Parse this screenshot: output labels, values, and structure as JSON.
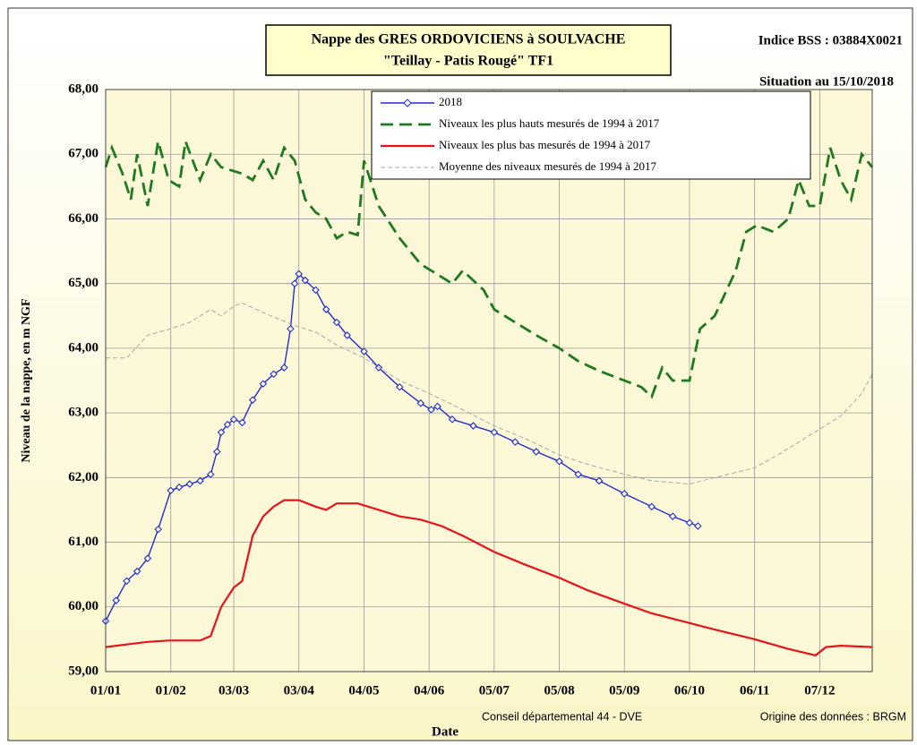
{
  "chart_data": {
    "type": "line",
    "title": "Nappe des GRES ORDOVICIENS à SOULVACHE",
    "subtitle": "\"Teillay - Patis Rougé\" TF1",
    "station": "Indice BSS : 03884X0021",
    "situation": "Situation au 15/10/2018",
    "y_label": "Niveau de la nappe, en m NGF",
    "x_label": "Date",
    "credit": "Conseil départemental 44 - DVE",
    "source": "Origine des données : BRGM",
    "xlim": [
      0,
      365
    ],
    "xticks": [
      {
        "value": 0,
        "label": "01/01"
      },
      {
        "value": 31,
        "label": "01/02"
      },
      {
        "value": 61,
        "label": "03/03"
      },
      {
        "value": 92,
        "label": "03/04"
      },
      {
        "value": 123,
        "label": "04/05"
      },
      {
        "value": 154,
        "label": "04/06"
      },
      {
        "value": 185,
        "label": "05/07"
      },
      {
        "value": 216,
        "label": "05/08"
      },
      {
        "value": 247,
        "label": "05/09"
      },
      {
        "value": 278,
        "label": "06/10"
      },
      {
        "value": 309,
        "label": "06/11"
      },
      {
        "value": 340,
        "label": "07/12"
      }
    ],
    "ylim": [
      59,
      68
    ],
    "yticks": [
      {
        "value": 59,
        "label": "59,00"
      },
      {
        "value": 60,
        "label": "60,00"
      },
      {
        "value": 61,
        "label": "61,00"
      },
      {
        "value": 62,
        "label": "62,00"
      },
      {
        "value": 63,
        "label": "63,00"
      },
      {
        "value": 64,
        "label": "64,00"
      },
      {
        "value": 65,
        "label": "65,00"
      },
      {
        "value": 66,
        "label": "66,00"
      },
      {
        "value": 67,
        "label": "67,00"
      },
      {
        "value": 68,
        "label": "68,00"
      }
    ],
    "grid": true,
    "legend": "top-right",
    "series": [
      {
        "name": "2018",
        "color": "#1f2fd0",
        "marker": "diamond",
        "linestyle": "solid",
        "x": [
          0,
          5,
          10,
          15,
          20,
          25,
          31,
          35,
          40,
          45,
          50,
          53,
          55,
          58,
          61,
          65,
          70,
          75,
          80,
          85,
          88,
          90,
          92,
          95,
          100,
          105,
          110,
          115,
          123,
          130,
          140,
          150,
          155,
          158,
          165,
          175,
          185,
          195,
          205,
          216,
          225,
          235,
          247,
          260,
          270,
          278,
          282
        ],
        "values": [
          59.78,
          60.1,
          60.4,
          60.55,
          60.75,
          61.2,
          61.8,
          61.85,
          61.9,
          61.95,
          62.05,
          62.4,
          62.7,
          62.82,
          62.9,
          62.85,
          63.2,
          63.45,
          63.6,
          63.7,
          64.3,
          65.0,
          65.15,
          65.05,
          64.9,
          64.6,
          64.4,
          64.2,
          63.95,
          63.7,
          63.4,
          63.15,
          63.05,
          63.1,
          62.9,
          62.8,
          62.7,
          62.55,
          62.4,
          62.25,
          62.05,
          61.95,
          61.75,
          61.55,
          61.4,
          61.3,
          61.25
        ]
      },
      {
        "name": "Niveaux les plus hauts mesurés de 1994 à 2017",
        "color": "#1e7a1e",
        "marker": "none",
        "linestyle": "dashed",
        "x": [
          0,
          3,
          8,
          12,
          15,
          20,
          25,
          30,
          35,
          38,
          45,
          50,
          55,
          65,
          70,
          75,
          80,
          85,
          90,
          95,
          100,
          105,
          110,
          115,
          120,
          123,
          130,
          140,
          150,
          160,
          165,
          170,
          180,
          185,
          195,
          205,
          216,
          225,
          235,
          247,
          255,
          260,
          265,
          270,
          278,
          283,
          290,
          300,
          305,
          310,
          318,
          325,
          330,
          335,
          340,
          345,
          350,
          355,
          360,
          365
        ],
        "values": [
          66.8,
          67.1,
          66.7,
          66.3,
          67.0,
          66.2,
          67.2,
          66.6,
          66.5,
          67.2,
          66.6,
          67.0,
          66.8,
          66.7,
          66.6,
          66.9,
          66.6,
          67.1,
          66.9,
          66.3,
          66.1,
          66.0,
          65.7,
          65.8,
          65.75,
          66.9,
          66.2,
          65.7,
          65.3,
          65.1,
          65.0,
          65.2,
          64.9,
          64.6,
          64.4,
          64.2,
          64.0,
          63.8,
          63.65,
          63.5,
          63.4,
          63.25,
          63.7,
          63.5,
          63.5,
          64.3,
          64.5,
          65.2,
          65.8,
          65.9,
          65.8,
          66.0,
          66.6,
          66.2,
          66.2,
          67.1,
          66.6,
          66.3,
          67.0,
          66.8
        ]
      },
      {
        "name": "Niveaux les plus bas mesurés de 1994 à 2017",
        "color": "#e8141a",
        "marker": "none",
        "linestyle": "solid",
        "x": [
          0,
          10,
          20,
          30,
          45,
          50,
          55,
          61,
          65,
          70,
          75,
          80,
          85,
          92,
          100,
          105,
          110,
          120,
          130,
          140,
          150,
          160,
          170,
          185,
          200,
          216,
          230,
          247,
          260,
          278,
          290,
          309,
          325,
          338,
          343,
          350,
          365
        ],
        "values": [
          59.38,
          59.42,
          59.46,
          59.48,
          59.48,
          59.55,
          60.0,
          60.3,
          60.4,
          61.1,
          61.4,
          61.55,
          61.65,
          61.65,
          61.55,
          61.5,
          61.6,
          61.6,
          61.5,
          61.4,
          61.35,
          61.25,
          61.1,
          60.85,
          60.65,
          60.45,
          60.25,
          60.05,
          59.9,
          59.75,
          59.65,
          59.5,
          59.35,
          59.25,
          59.38,
          59.4,
          59.38
        ]
      },
      {
        "name": "Moyenne des niveaux mesurés de 1994 à 2017",
        "color": "#a8a8a8",
        "marker": "none",
        "linestyle": "dotted",
        "x": [
          0,
          10,
          20,
          31,
          40,
          50,
          55,
          61,
          65,
          75,
          90,
          100,
          110,
          123,
          140,
          154,
          170,
          185,
          200,
          216,
          230,
          247,
          260,
          278,
          290,
          309,
          320,
          330,
          340,
          350,
          360,
          365
        ],
        "values": [
          63.85,
          63.85,
          64.2,
          64.3,
          64.4,
          64.6,
          64.5,
          64.65,
          64.7,
          64.55,
          64.35,
          64.25,
          64.05,
          63.85,
          63.5,
          63.3,
          63.05,
          62.8,
          62.6,
          62.35,
          62.2,
          62.05,
          61.95,
          61.9,
          62.0,
          62.15,
          62.35,
          62.55,
          62.75,
          62.95,
          63.3,
          63.6
        ]
      }
    ]
  }
}
